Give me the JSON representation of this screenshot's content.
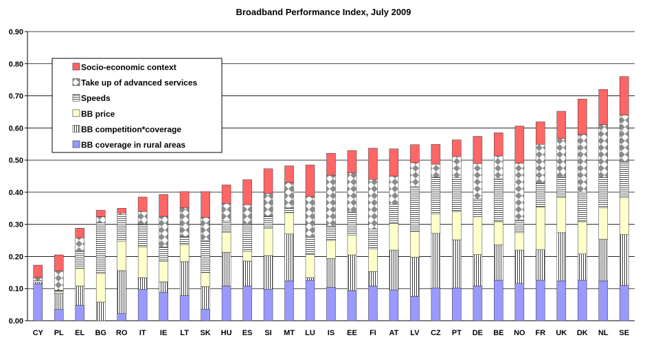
{
  "chart_data": {
    "type": "bar",
    "stacked": true,
    "title": "Broadband Performance Index, July 2009",
    "xlabel": "",
    "ylabel": "",
    "ylim": [
      0,
      0.9
    ],
    "yticks": [
      "0.00",
      "0.10",
      "0.20",
      "0.30",
      "0.40",
      "0.50",
      "0.60",
      "0.70",
      "0.80",
      "0.90"
    ],
    "grid": true,
    "legend_position": "top-left",
    "categories": [
      "CY",
      "PL",
      "EL",
      "BG",
      "RO",
      "IT",
      "IE",
      "LT",
      "SK",
      "HU",
      "ES",
      "SI",
      "MT",
      "LU",
      "IS",
      "EE",
      "FI",
      "AT",
      "LV",
      "CZ",
      "PT",
      "DE",
      "BE",
      "NO",
      "FR",
      "UK",
      "DK",
      "NL",
      "SE"
    ],
    "series": [
      {
        "name": "BB coverage in rural areas",
        "color": "#9999ff",
        "pattern": "solid",
        "values": [
          0.115,
          0.035,
          0.048,
          0.0,
          0.022,
          0.098,
          0.088,
          0.078,
          0.036,
          0.108,
          0.108,
          0.098,
          0.124,
          0.126,
          0.104,
          0.094,
          0.108,
          0.096,
          0.076,
          0.102,
          0.102,
          0.108,
          0.126,
          0.116,
          0.126,
          0.124,
          0.126,
          0.124,
          0.11
        ]
      },
      {
        "name": "BB competition*coverage",
        "color": "#ffffff",
        "pattern": "vertical-lines",
        "values": [
          0.005,
          0.05,
          0.06,
          0.058,
          0.134,
          0.036,
          0.033,
          0.106,
          0.07,
          0.105,
          0.078,
          0.105,
          0.146,
          0.008,
          0.09,
          0.111,
          0.045,
          0.124,
          0.122,
          0.17,
          0.15,
          0.098,
          0.11,
          0.104,
          0.095,
          0.15,
          0.082,
          0.13,
          0.158
        ]
      },
      {
        "name": "BB price",
        "color": "#ffffcc",
        "pattern": "solid",
        "values": [
          0.0,
          0.005,
          0.055,
          0.088,
          0.092,
          0.096,
          0.064,
          0.053,
          0.044,
          0.062,
          0.03,
          0.085,
          0.066,
          0.072,
          0.056,
          0.062,
          0.07,
          0.082,
          0.08,
          0.06,
          0.088,
          0.118,
          0.072,
          0.054,
          0.133,
          0.11,
          0.1,
          0.098,
          0.115
        ]
      },
      {
        "name": "Speeds",
        "color": "#ffffff",
        "pattern": "horizontal-lines",
        "values": [
          0.005,
          0.005,
          0.055,
          0.158,
          0.082,
          0.07,
          0.045,
          0.025,
          0.1,
          0.035,
          0.085,
          0.038,
          0.016,
          0.057,
          0.045,
          0.073,
          0.062,
          0.06,
          0.14,
          0.115,
          0.105,
          0.055,
          0.135,
          0.04,
          0.075,
          0.065,
          0.092,
          0.094,
          0.112
        ]
      },
      {
        "name": "Take up of advanced services",
        "color": "#c0c0c0",
        "pattern": "diamonds",
        "values": [
          0.01,
          0.06,
          0.04,
          0.02,
          0.005,
          0.04,
          0.095,
          0.09,
          0.072,
          0.055,
          0.06,
          0.07,
          0.078,
          0.124,
          0.158,
          0.12,
          0.155,
          0.088,
          0.074,
          0.04,
          0.066,
          0.11,
          0.07,
          0.176,
          0.12,
          0.118,
          0.18,
          0.164,
          0.145
        ]
      },
      {
        "name": "Socio-economic context",
        "color": "#ff6666",
        "pattern": "solid",
        "values": [
          0.038,
          0.05,
          0.03,
          0.02,
          0.015,
          0.045,
          0.068,
          0.05,
          0.08,
          0.058,
          0.078,
          0.077,
          0.052,
          0.098,
          0.068,
          0.07,
          0.097,
          0.085,
          0.056,
          0.062,
          0.052,
          0.085,
          0.072,
          0.116,
          0.07,
          0.085,
          0.11,
          0.11,
          0.12
        ]
      }
    ],
    "totals": [
      0.173,
      0.205,
      0.288,
      0.344,
      0.35,
      0.385,
      0.393,
      0.402,
      0.402,
      0.423,
      0.439,
      0.473,
      0.482,
      0.485,
      0.521,
      0.53,
      0.537,
      0.535,
      0.548,
      0.549,
      0.563,
      0.574,
      0.585,
      0.606,
      0.619,
      0.652,
      0.69,
      0.72,
      0.76
    ],
    "legend_order": [
      "Socio-economic context",
      "Take up of advanced services",
      "Speeds",
      "BB price",
      "BB competition*coverage",
      "BB coverage in rural areas"
    ]
  }
}
